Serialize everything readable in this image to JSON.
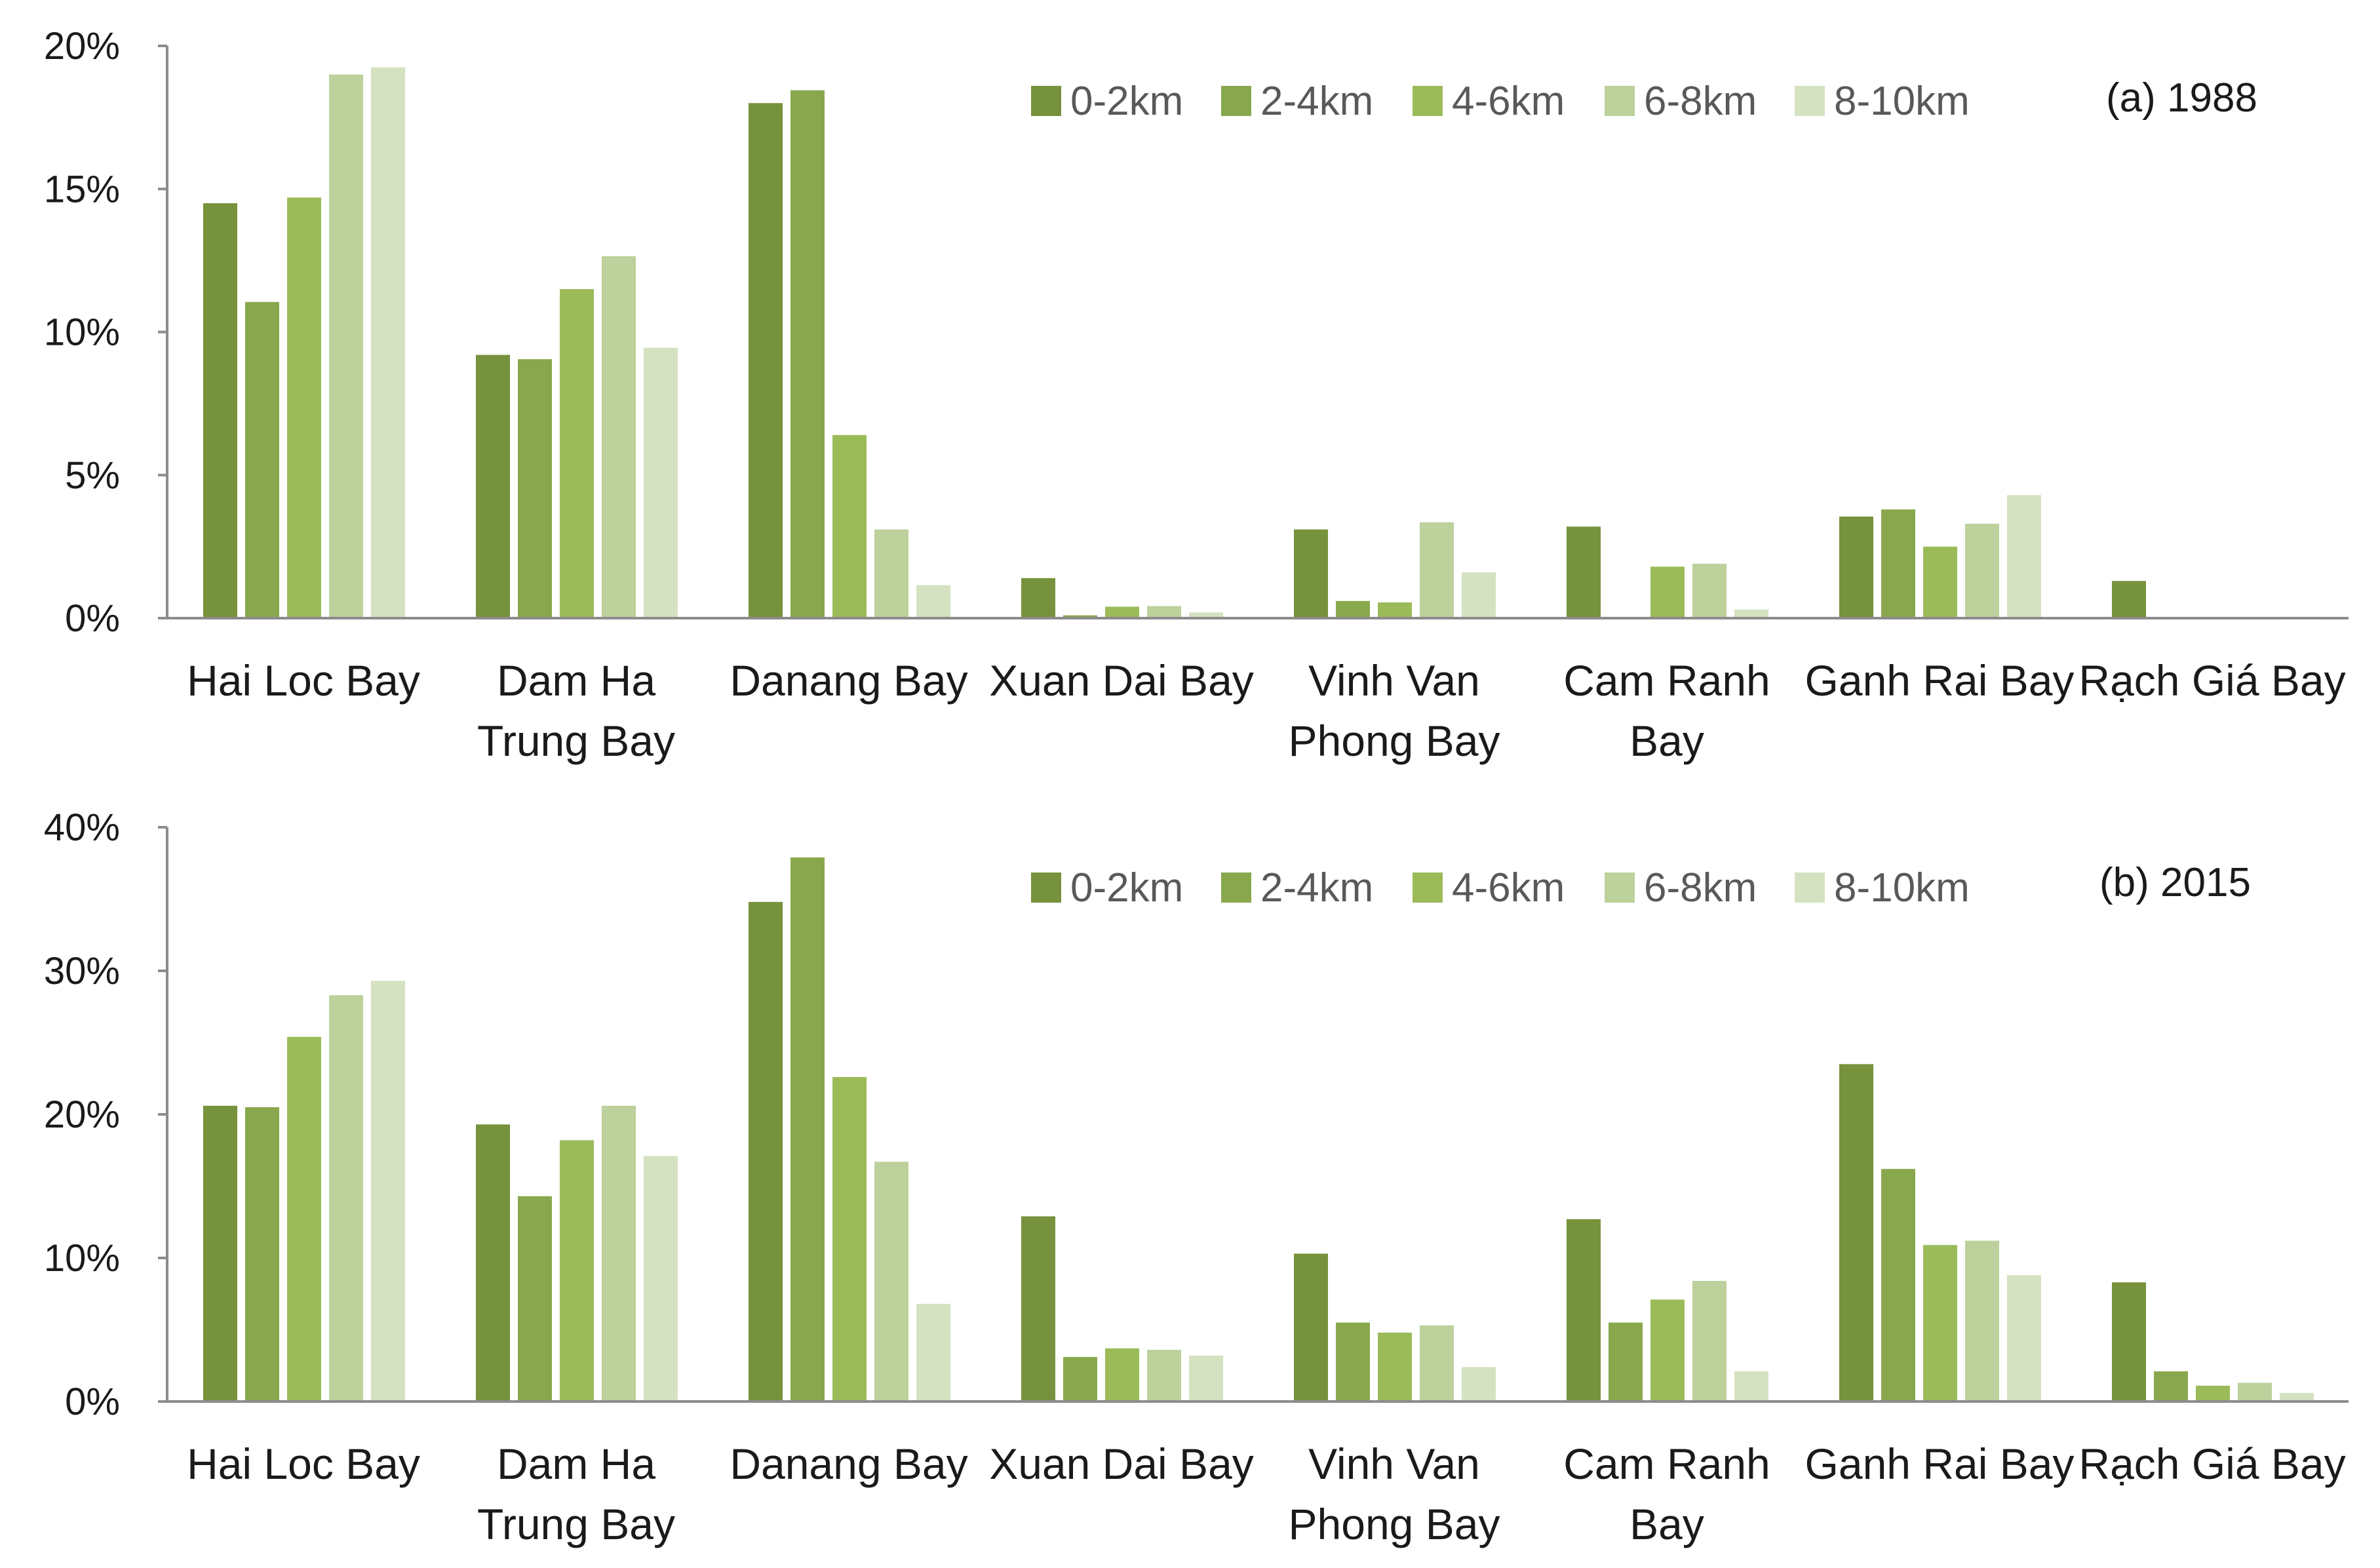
{
  "colors": {
    "0-2km": "#76923c",
    "2-4km": "#89a84e",
    "4-6km": "#9bbb59",
    "6-8km": "#bcd19b",
    "8-10km": "#d5e2c1",
    "axis": "#8c8c8c"
  },
  "chart_data": [
    {
      "type": "bar",
      "annotation": "(a) 1988",
      "categories": [
        "Hai Loc Bay",
        "Dam Ha Trung Bay",
        "Danang Bay",
        "Xuan Dai Bay",
        "Vinh Van Phong Bay",
        "Cam Ranh Bay",
        "Ganh Rai Bay",
        "Rạch Giá Bay"
      ],
      "category_lines": [
        [
          "Hai Loc Bay"
        ],
        [
          "Dam Ha",
          "Trung Bay"
        ],
        [
          "Danang Bay"
        ],
        [
          "Xuan Dai Bay"
        ],
        [
          "Vinh Van",
          "Phong Bay"
        ],
        [
          "Cam Ranh",
          "Bay"
        ],
        [
          "Ganh Rai Bay"
        ],
        [
          "Rạch Giá Bay"
        ]
      ],
      "yticks": [
        "0%",
        "5%",
        "10%",
        "15%",
        "20%"
      ],
      "ylim": [
        0,
        20
      ],
      "legend_position": "top",
      "series": [
        {
          "name": "0-2km",
          "values": [
            14.5,
            9.2,
            18.0,
            1.4,
            3.1,
            3.2,
            3.55,
            1.3
          ]
        },
        {
          "name": "2-4km",
          "values": [
            11.05,
            9.05,
            18.45,
            0.1,
            0.6,
            0.0,
            3.8,
            0.0
          ]
        },
        {
          "name": "4-6km",
          "values": [
            14.7,
            11.5,
            6.4,
            0.4,
            0.55,
            1.8,
            2.5,
            0.0
          ]
        },
        {
          "name": "6-8km",
          "values": [
            19.0,
            12.65,
            3.1,
            0.42,
            3.35,
            1.9,
            3.3,
            0.0
          ]
        },
        {
          "name": "8-10km",
          "values": [
            19.25,
            9.45,
            1.15,
            0.2,
            1.6,
            0.3,
            4.3,
            0.05
          ]
        }
      ]
    },
    {
      "type": "bar",
      "annotation": "(b) 2015",
      "categories": [
        "Hai Loc Bay",
        "Dam Ha Trung Bay",
        "Danang Bay",
        "Xuan Dai Bay",
        "Vinh Van Phong Bay",
        "Cam Ranh Bay",
        "Ganh Rai Bay",
        "Rạch Giá Bay"
      ],
      "category_lines": [
        [
          "Hai Loc Bay"
        ],
        [
          "Dam Ha",
          "Trung Bay"
        ],
        [
          "Danang Bay"
        ],
        [
          "Xuan Dai Bay"
        ],
        [
          "Vinh Van",
          "Phong Bay"
        ],
        [
          "Cam Ranh",
          "Bay"
        ],
        [
          "Ganh Rai Bay"
        ],
        [
          "Rạch Giá Bay"
        ]
      ],
      "yticks": [
        "0%",
        "10%",
        "20%",
        "30%",
        "40%"
      ],
      "ylim": [
        0,
        40
      ],
      "legend_position": "top",
      "series": [
        {
          "name": "0-2km",
          "values": [
            20.6,
            19.3,
            34.8,
            12.9,
            10.3,
            12.7,
            23.5,
            8.3
          ]
        },
        {
          "name": "2-4km",
          "values": [
            20.5,
            14.3,
            37.9,
            3.1,
            5.5,
            5.5,
            16.2,
            2.1
          ]
        },
        {
          "name": "4-6km",
          "values": [
            25.4,
            18.2,
            22.6,
            3.7,
            4.8,
            7.1,
            10.9,
            1.1
          ]
        },
        {
          "name": "6-8km",
          "values": [
            28.3,
            20.6,
            16.7,
            3.6,
            5.3,
            8.4,
            11.2,
            1.3
          ]
        },
        {
          "name": "8-10km",
          "values": [
            29.3,
            17.1,
            6.8,
            3.2,
            2.4,
            2.1,
            8.8,
            0.6
          ]
        }
      ]
    }
  ]
}
